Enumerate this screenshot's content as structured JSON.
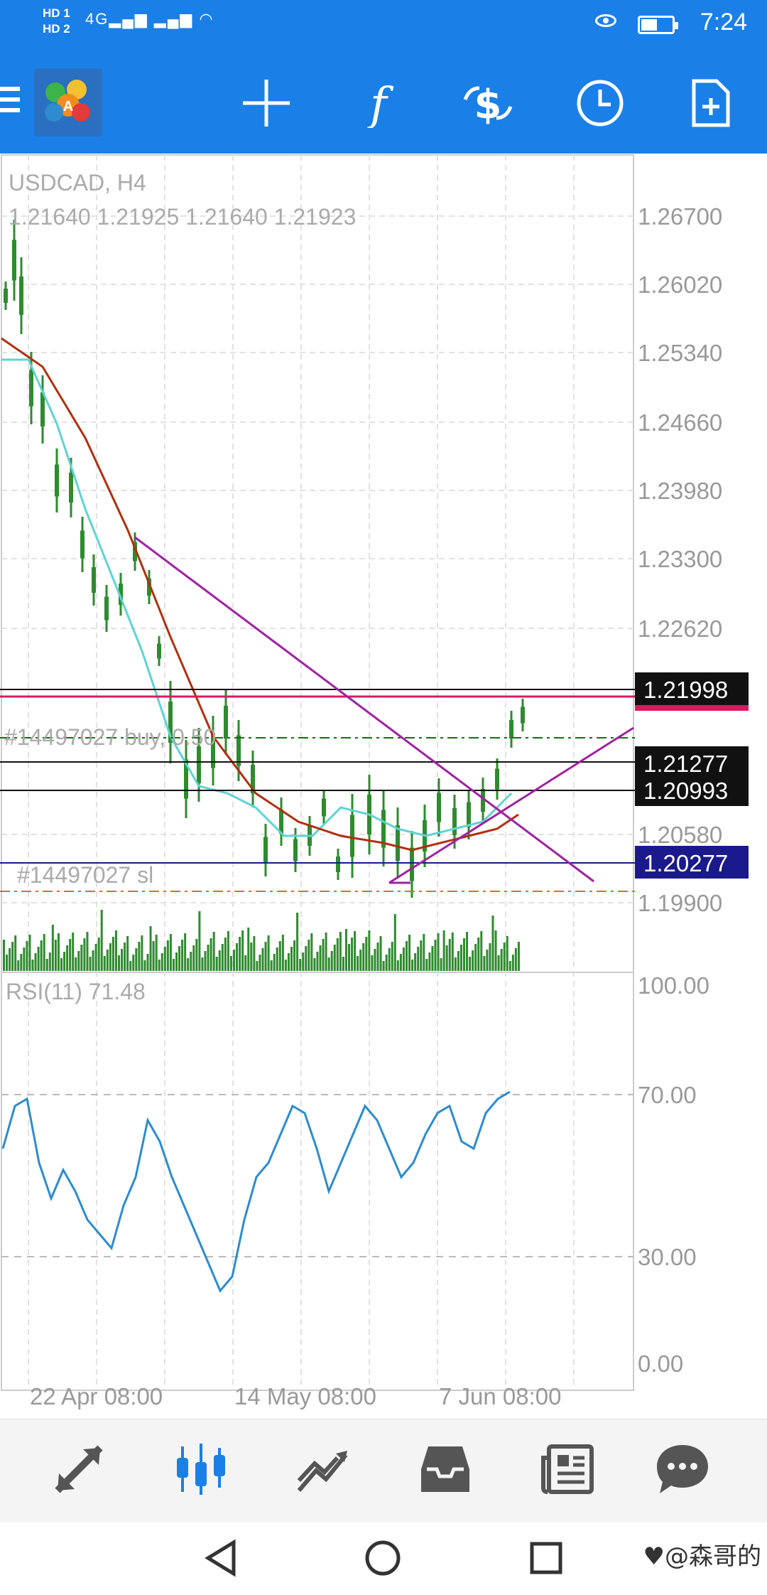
{
  "status_bar": {
    "hd1": "HD 1",
    "hd2": "HD 2",
    "signal": "4G",
    "time": "7:24"
  },
  "toolbar": {
    "buttons": [
      {
        "icon": "crosshair-icon"
      },
      {
        "icon": "indicators-f-icon"
      },
      {
        "icon": "symbols-dollar-icon"
      },
      {
        "icon": "timeframe-clock-icon"
      },
      {
        "icon": "new-order-icon"
      }
    ]
  },
  "chart": {
    "symbol": "USDCAD, H4",
    "ohlc": "1.21640 1.21925 1.21640 1.21923",
    "buy_label": "#14497027 buy, 0.50",
    "sl_label": "#14497027 sl",
    "price_axis": [
      "1.26700",
      "1.26020",
      "1.25340",
      "1.24660",
      "1.23980",
      "1.23300",
      "1.22620",
      "1.20580",
      "1.19900"
    ],
    "price_tags": [
      {
        "value": "1.21998",
        "color": "#111111"
      },
      {
        "value": "1.21277",
        "color": "#111111"
      },
      {
        "value": "1.20993",
        "color": "#111111"
      },
      {
        "value": "1.20277",
        "color": "#1a1a8c"
      }
    ],
    "rsi_label": "RSI(11) 71.48",
    "rsi_axis": [
      "100.00",
      "70.00",
      "30.00",
      "0.00"
    ],
    "time_axis": [
      "22 Apr 08:00",
      "14 May 08:00",
      "7 Jun 08:00"
    ],
    "colors": {
      "candles": "#2e8b2e",
      "ma_fast": "#5fd3d3",
      "ma_slow": "#b03010",
      "trendline": "#a020a0",
      "current_price_line": "#d81b60",
      "rsi_line": "#2d8bd0",
      "volume": "#2e8b2e"
    }
  },
  "chart_data": {
    "type": "line",
    "title": "USDCAD, H4",
    "ylim": [
      1.199,
      1.267
    ],
    "series": [
      {
        "name": "RSI(11)",
        "last": 71.48
      }
    ]
  },
  "bottom_nav": [
    {
      "icon": "quotes-arrows-icon",
      "active": false
    },
    {
      "icon": "chart-candles-icon",
      "active": true
    },
    {
      "icon": "trade-icon",
      "active": false
    },
    {
      "icon": "history-inbox-icon",
      "active": false
    },
    {
      "icon": "news-icon",
      "active": false
    },
    {
      "icon": "chat-icon",
      "active": false
    }
  ],
  "watermark": "♥@森哥的"
}
